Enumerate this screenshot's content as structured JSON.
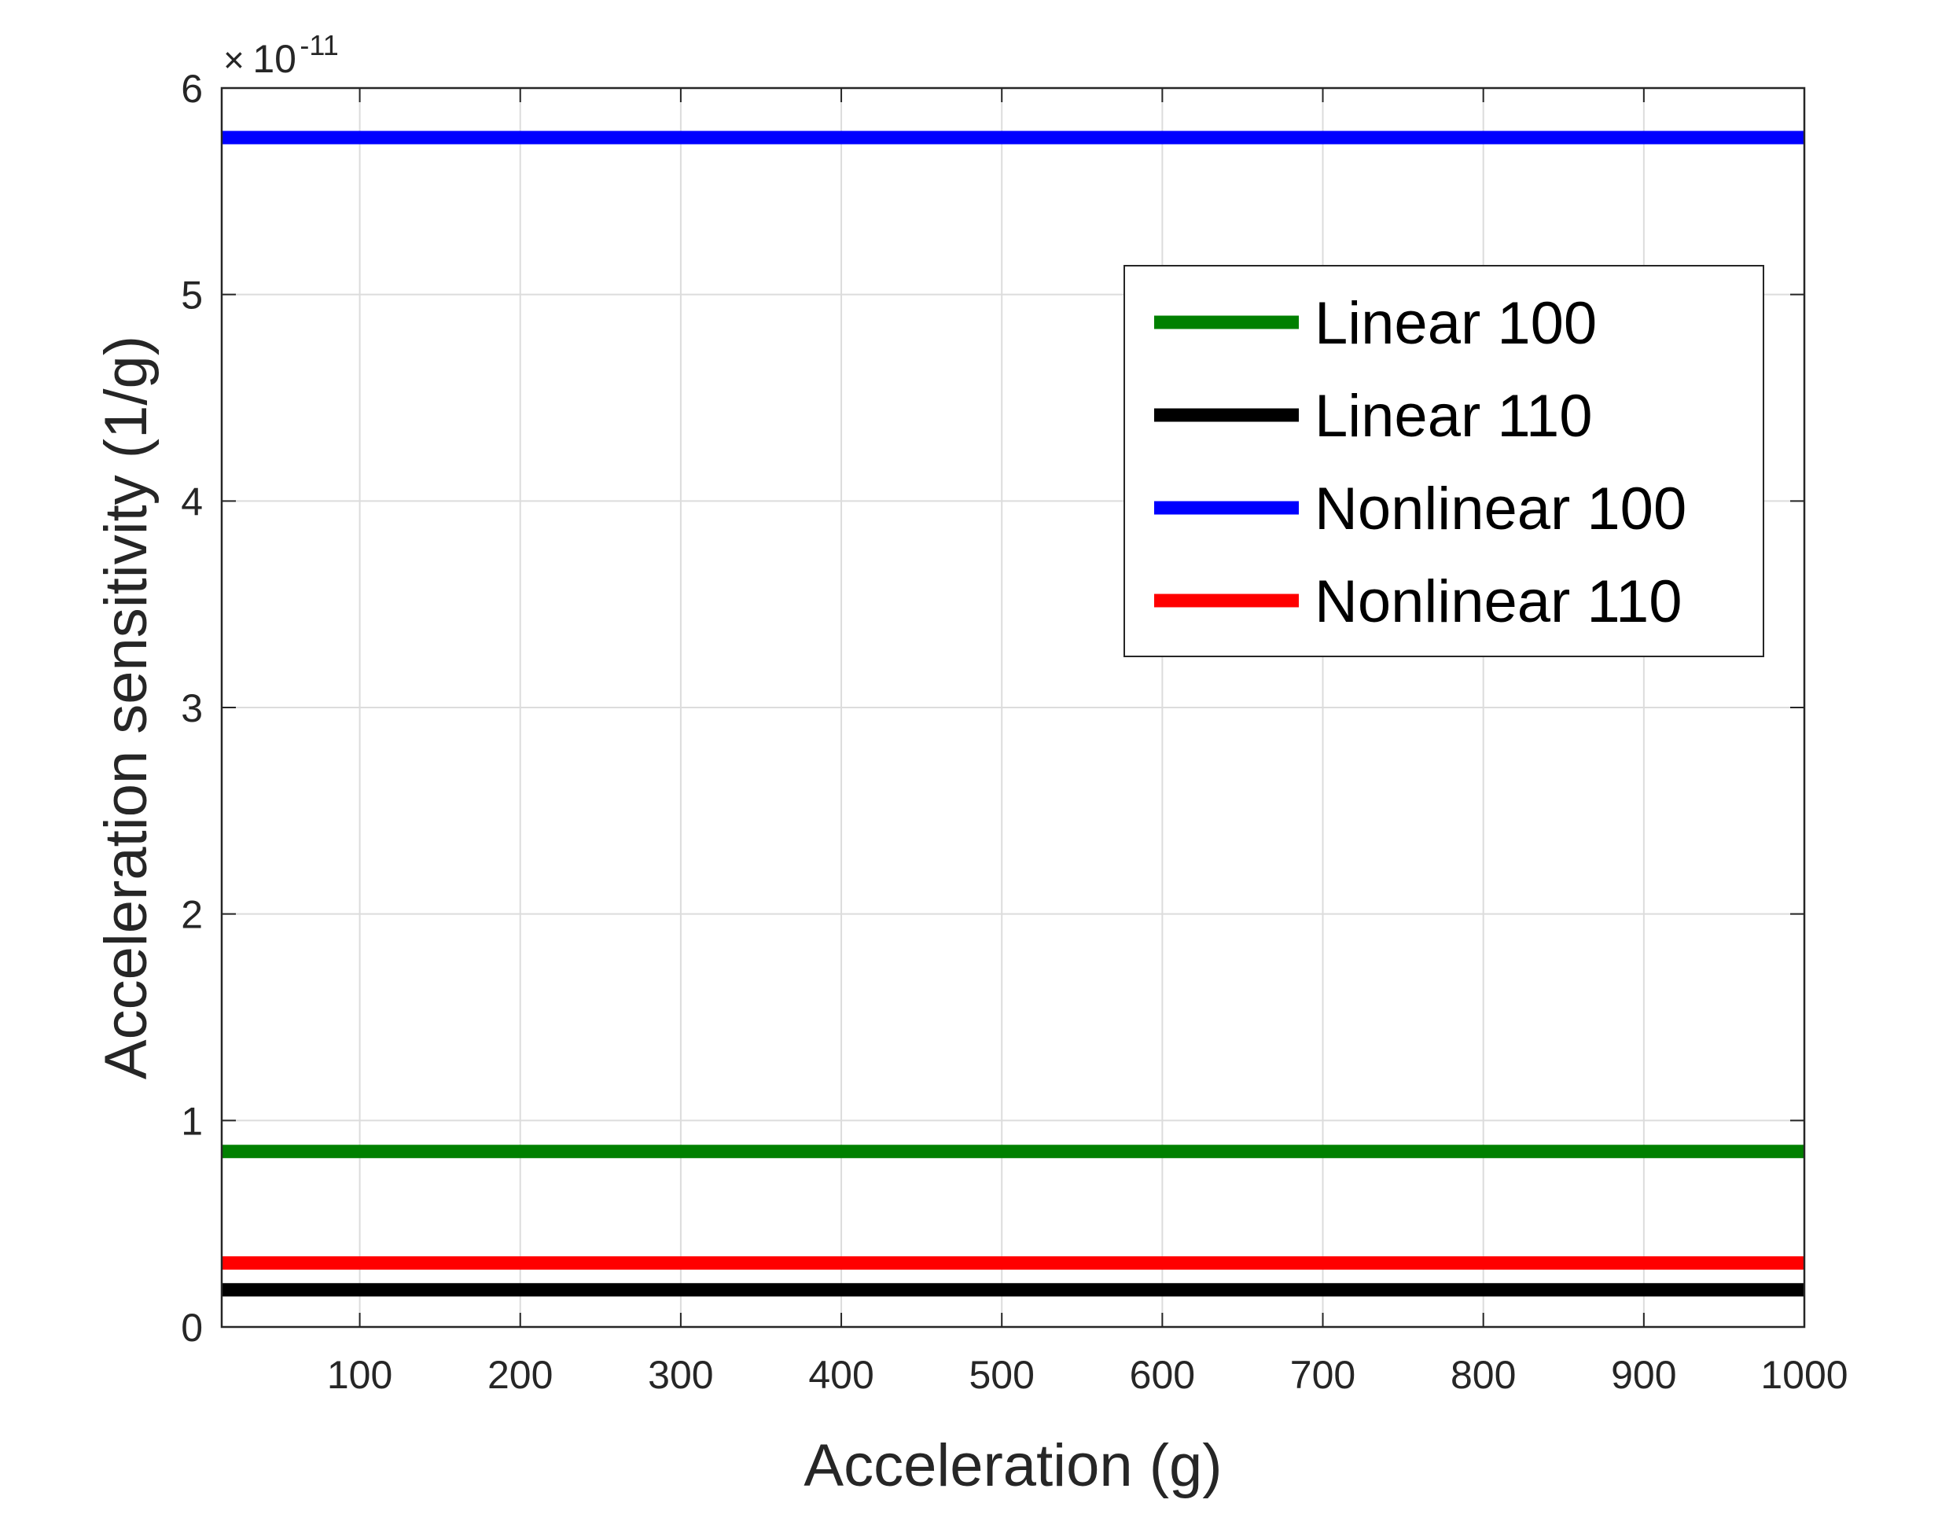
{
  "chart_data": {
    "type": "line",
    "title": "",
    "xlabel": "Acceleration (g)",
    "ylabel": "Acceleration sensitivity (1/g)",
    "xlim": [
      14,
      1000
    ],
    "ylim": [
      0,
      6
    ],
    "y_exponent_base": "10",
    "y_exponent_power": "-11",
    "y_exponent_prefix": "×",
    "grid": true,
    "legend_location": "top-right",
    "xticks": [
      100,
      200,
      300,
      400,
      500,
      600,
      700,
      800,
      900,
      1000
    ],
    "yticks": [
      0,
      1,
      2,
      3,
      4,
      5,
      6
    ],
    "x": [
      14,
      1000
    ],
    "series": [
      {
        "name": "Linear 100",
        "color": "#008000",
        "values": [
          0.85,
          0.85
        ]
      },
      {
        "name": "Linear 110",
        "color": "#000000",
        "values": [
          0.18,
          0.18
        ]
      },
      {
        "name": "Nonlinear 100",
        "color": "#0000ff",
        "values": [
          5.76,
          5.76
        ]
      },
      {
        "name": "Nonlinear 110",
        "color": "#ff0000",
        "values": [
          0.31,
          0.31
        ]
      }
    ]
  }
}
